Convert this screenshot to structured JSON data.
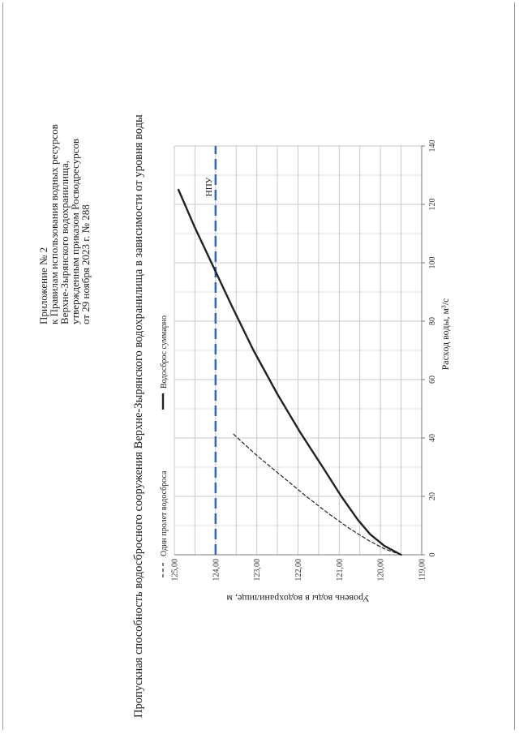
{
  "appendix": {
    "lines": [
      "Приложение № 2",
      "к Правилам использования водных ресурсов",
      "Верхне-Зырянского водохранилища,",
      "утвержденным приказом Росводресурсов",
      "от 29 ноября 2023 г. № 288"
    ]
  },
  "chart_title": "Пропускная способность водосбросного сооружения Верхне-Зырянского водохранилища в зависимости от уровня воды",
  "chart_data": {
    "type": "line",
    "title": "Пропускная способность водосбросного сооружения Верхне-Зырянского водохранилища в зависимости от уровня воды",
    "xlabel": "Расход воды, м³/с",
    "ylabel": "Уровень воды в водохранилище, м",
    "xlim": [
      0,
      140
    ],
    "ylim": [
      119.0,
      125.0
    ],
    "x_ticks": [
      "0",
      "20",
      "40",
      "60",
      "80",
      "100",
      "120",
      "140"
    ],
    "y_ticks": [
      "119,00",
      "120,00",
      "121,00",
      "122,00",
      "123,00",
      "124,00",
      "125,00"
    ],
    "grid": true,
    "legend_position": "top",
    "series": [
      {
        "name": "Один пролет водосброса",
        "style": "dashed",
        "color": "#222222",
        "x": [
          0,
          2,
          5,
          9,
          14,
          20,
          27,
          34,
          41.5
        ],
        "y": [
          119.5,
          119.9,
          120.3,
          120.75,
          121.25,
          121.8,
          122.4,
          123.0,
          123.58
        ]
      },
      {
        "name": "Водосброс суммарно",
        "style": "solid",
        "color": "#222222",
        "x": [
          0,
          3,
          7,
          12,
          20,
          30,
          42,
          55,
          70,
          85,
          100,
          112,
          125
        ],
        "y": [
          119.5,
          119.9,
          120.25,
          120.55,
          120.95,
          121.4,
          121.95,
          122.5,
          123.08,
          123.6,
          124.1,
          124.5,
          124.9
        ]
      }
    ],
    "reference_lines": [
      {
        "label": "НПУ",
        "axis": "y",
        "value": 124.0,
        "color": "#2e67c4",
        "style": "dashed"
      }
    ]
  }
}
